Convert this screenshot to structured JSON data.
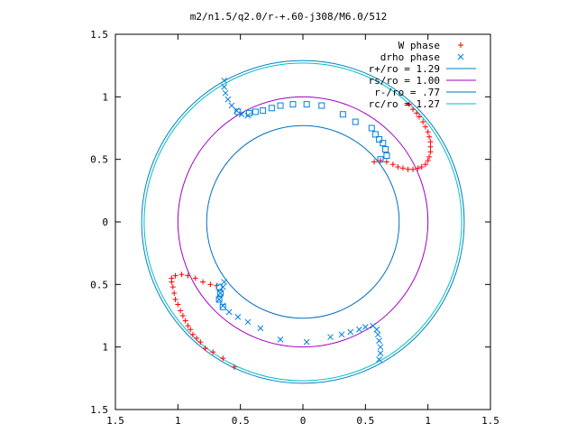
{
  "chart_data": {
    "type": "scatter",
    "title": "m2/n1.5/q2.0/r-+.60-j308/M6.0/512",
    "xlabel": "",
    "ylabel": "",
    "xlim": [
      -1.5,
      1.5
    ],
    "ylim": [
      -1.5,
      1.5
    ],
    "grid": false,
    "legend_position": "top-right",
    "x_ticks": [
      {
        "value": -1.5,
        "label": "1.5"
      },
      {
        "value": -1.0,
        "label": "1"
      },
      {
        "value": -0.5,
        "label": "0.5"
      },
      {
        "value": 0,
        "label": "0"
      },
      {
        "value": 0.5,
        "label": "0.5"
      },
      {
        "value": 1.0,
        "label": "1"
      },
      {
        "value": 1.5,
        "label": "1.5"
      }
    ],
    "y_ticks": [
      {
        "value": 1.5,
        "label": "1.5"
      },
      {
        "value": 1.0,
        "label": "1"
      },
      {
        "value": 0.5,
        "label": "0.5"
      },
      {
        "value": 0,
        "label": "0"
      },
      {
        "value": -0.5,
        "label": "0.5"
      },
      {
        "value": -1.0,
        "label": "1"
      },
      {
        "value": -1.5,
        "label": "1.5"
      }
    ],
    "circles": [
      {
        "name": "r+/ro = 1.29",
        "radius": 1.29,
        "color": "#0080c0"
      },
      {
        "name": "rs/ro = 1.00",
        "radius": 1.0,
        "color": "#a000c0"
      },
      {
        "name": "r-/ro = .77",
        "radius": 0.77,
        "color": "#0070c0"
      },
      {
        "name": "rc/ro = 1.27",
        "radius": 1.27,
        "color": "#00c0c8"
      }
    ],
    "series": [
      {
        "name": "W phase",
        "marker": "+",
        "color": "#ff0000",
        "points": [
          [
            0.57,
            0.48
          ],
          [
            0.62,
            0.49
          ],
          [
            0.67,
            0.48
          ],
          [
            0.72,
            0.46
          ],
          [
            0.76,
            0.44
          ],
          [
            0.8,
            0.43
          ],
          [
            0.84,
            0.42
          ],
          [
            0.88,
            0.42
          ],
          [
            0.92,
            0.43
          ],
          [
            0.95,
            0.44
          ],
          [
            0.98,
            0.46
          ],
          [
            1.0,
            0.49
          ],
          [
            1.01,
            0.52
          ],
          [
            1.02,
            0.56
          ],
          [
            1.02,
            0.6
          ],
          [
            1.02,
            0.64
          ],
          [
            1.01,
            0.68
          ],
          [
            1.0,
            0.72
          ],
          [
            0.98,
            0.76
          ],
          [
            0.96,
            0.8
          ],
          [
            0.93,
            0.84
          ],
          [
            0.91,
            0.87
          ],
          [
            0.88,
            0.9
          ],
          [
            0.85,
            0.94
          ],
          [
            -1.05,
            -0.48
          ],
          [
            -1.04,
            -0.52
          ],
          [
            -1.03,
            -0.57
          ],
          [
            -1.02,
            -0.62
          ],
          [
            -1.0,
            -0.66
          ],
          [
            -0.98,
            -0.71
          ],
          [
            -0.96,
            -0.75
          ],
          [
            -0.94,
            -0.79
          ],
          [
            -0.92,
            -0.83
          ],
          [
            -0.9,
            -0.86
          ],
          [
            -0.88,
            -0.9
          ],
          [
            -0.85,
            -0.93
          ],
          [
            -0.82,
            -0.96
          ],
          [
            -0.78,
            -1.01
          ],
          [
            -0.72,
            -1.04
          ],
          [
            -0.64,
            -1.09
          ],
          [
            -0.55,
            -1.16
          ],
          [
            -1.05,
            -0.45
          ],
          [
            -1.02,
            -0.43
          ],
          [
            -0.97,
            -0.42
          ],
          [
            -0.92,
            -0.43
          ],
          [
            -0.86,
            -0.45
          ],
          [
            -0.8,
            -0.48
          ],
          [
            -0.74,
            -0.5
          ],
          [
            -0.69,
            -0.51
          ]
        ]
      },
      {
        "name": "drho phase",
        "marker": "x",
        "color": "#0080e0",
        "points": [
          [
            -0.63,
            1.13
          ],
          [
            -0.63,
            1.08
          ],
          [
            -0.62,
            1.03
          ],
          [
            -0.6,
            0.98
          ],
          [
            -0.57,
            0.93
          ],
          [
            -0.53,
            0.89
          ],
          [
            -0.49,
            0.86
          ],
          [
            -0.44,
            0.85
          ],
          [
            -0.63,
            -0.48
          ],
          [
            -0.64,
            -0.52
          ],
          [
            -0.66,
            -0.57
          ],
          [
            -0.67,
            -0.62
          ],
          [
            -0.64,
            -0.67
          ],
          [
            -0.59,
            -0.72
          ],
          [
            -0.52,
            -0.76
          ],
          [
            -0.44,
            -0.8
          ],
          [
            -0.34,
            -0.85
          ],
          [
            -0.18,
            -0.94
          ],
          [
            0.03,
            -0.96
          ],
          [
            0.22,
            -0.92
          ],
          [
            0.31,
            -0.9
          ],
          [
            0.38,
            -0.88
          ],
          [
            0.45,
            -0.86
          ],
          [
            0.5,
            -0.84
          ],
          [
            0.56,
            -0.83
          ],
          [
            0.59,
            -0.86
          ],
          [
            0.6,
            -0.9
          ],
          [
            0.61,
            -0.95
          ],
          [
            0.62,
            -1.0
          ],
          [
            0.62,
            -1.05
          ],
          [
            0.61,
            -1.1
          ]
        ]
      },
      {
        "name": "",
        "marker": "square",
        "color": "#0080e0",
        "points": [
          [
            -0.52,
            0.88
          ],
          [
            -0.43,
            0.87
          ],
          [
            -0.38,
            0.88
          ],
          [
            -0.32,
            0.89
          ],
          [
            -0.25,
            0.91
          ],
          [
            -0.18,
            0.93
          ],
          [
            -0.08,
            0.94
          ],
          [
            0.03,
            0.94
          ],
          [
            0.15,
            0.93
          ],
          [
            0.32,
            0.86
          ],
          [
            0.42,
            0.8
          ],
          [
            0.55,
            0.75
          ],
          [
            0.58,
            0.7
          ],
          [
            0.61,
            0.66
          ],
          [
            0.64,
            0.63
          ],
          [
            0.66,
            0.58
          ],
          [
            0.67,
            0.53
          ],
          [
            0.62,
            0.5
          ],
          [
            -0.67,
            -0.52
          ],
          [
            -0.66,
            -0.57
          ],
          [
            -0.67,
            -0.62
          ],
          [
            -0.64,
            -0.68
          ]
        ]
      }
    ]
  }
}
